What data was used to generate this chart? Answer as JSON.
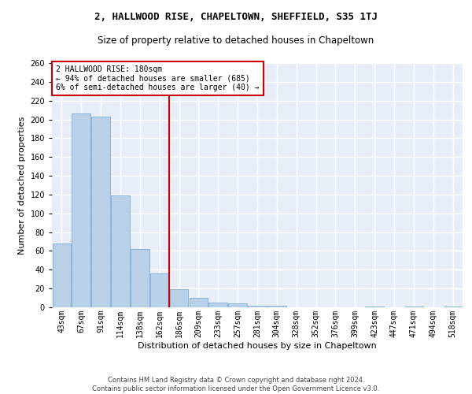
{
  "title1": "2, HALLWOOD RISE, CHAPELTOWN, SHEFFIELD, S35 1TJ",
  "title2": "Size of property relative to detached houses in Chapeltown",
  "xlabel": "Distribution of detached houses by size in Chapeltown",
  "ylabel": "Number of detached properties",
  "footer1": "Contains HM Land Registry data © Crown copyright and database right 2024.",
  "footer2": "Contains public sector information licensed under the Open Government Licence v3.0.",
  "annotation_title": "2 HALLWOOD RISE: 180sqm",
  "annotation_line1": "← 94% of detached houses are smaller (685)",
  "annotation_line2": "6% of semi-detached houses are larger (40) →",
  "bar_color": "#b8d0e8",
  "bar_edge_color": "#7aafd4",
  "vline_color": "#cc0000",
  "annotation_box_color": "#cc0000",
  "background_color": "#e8eef8",
  "categories": [
    "43sqm",
    "67sqm",
    "91sqm",
    "114sqm",
    "138sqm",
    "162sqm",
    "186sqm",
    "209sqm",
    "233sqm",
    "257sqm",
    "281sqm",
    "304sqm",
    "328sqm",
    "352sqm",
    "376sqm",
    "399sqm",
    "423sqm",
    "447sqm",
    "471sqm",
    "494sqm",
    "518sqm"
  ],
  "values": [
    68,
    206,
    203,
    119,
    62,
    36,
    19,
    10,
    5,
    4,
    2,
    2,
    0,
    0,
    0,
    0,
    1,
    0,
    1,
    0,
    1
  ],
  "vline_bin_index": 6,
  "ylim": [
    0,
    260
  ],
  "yticks": [
    0,
    20,
    40,
    60,
    80,
    100,
    120,
    140,
    160,
    180,
    200,
    220,
    240,
    260
  ],
  "title1_fontsize": 9,
  "title2_fontsize": 8.5,
  "ylabel_fontsize": 8,
  "xlabel_fontsize": 8,
  "tick_fontsize": 7,
  "footer_fontsize": 6
}
